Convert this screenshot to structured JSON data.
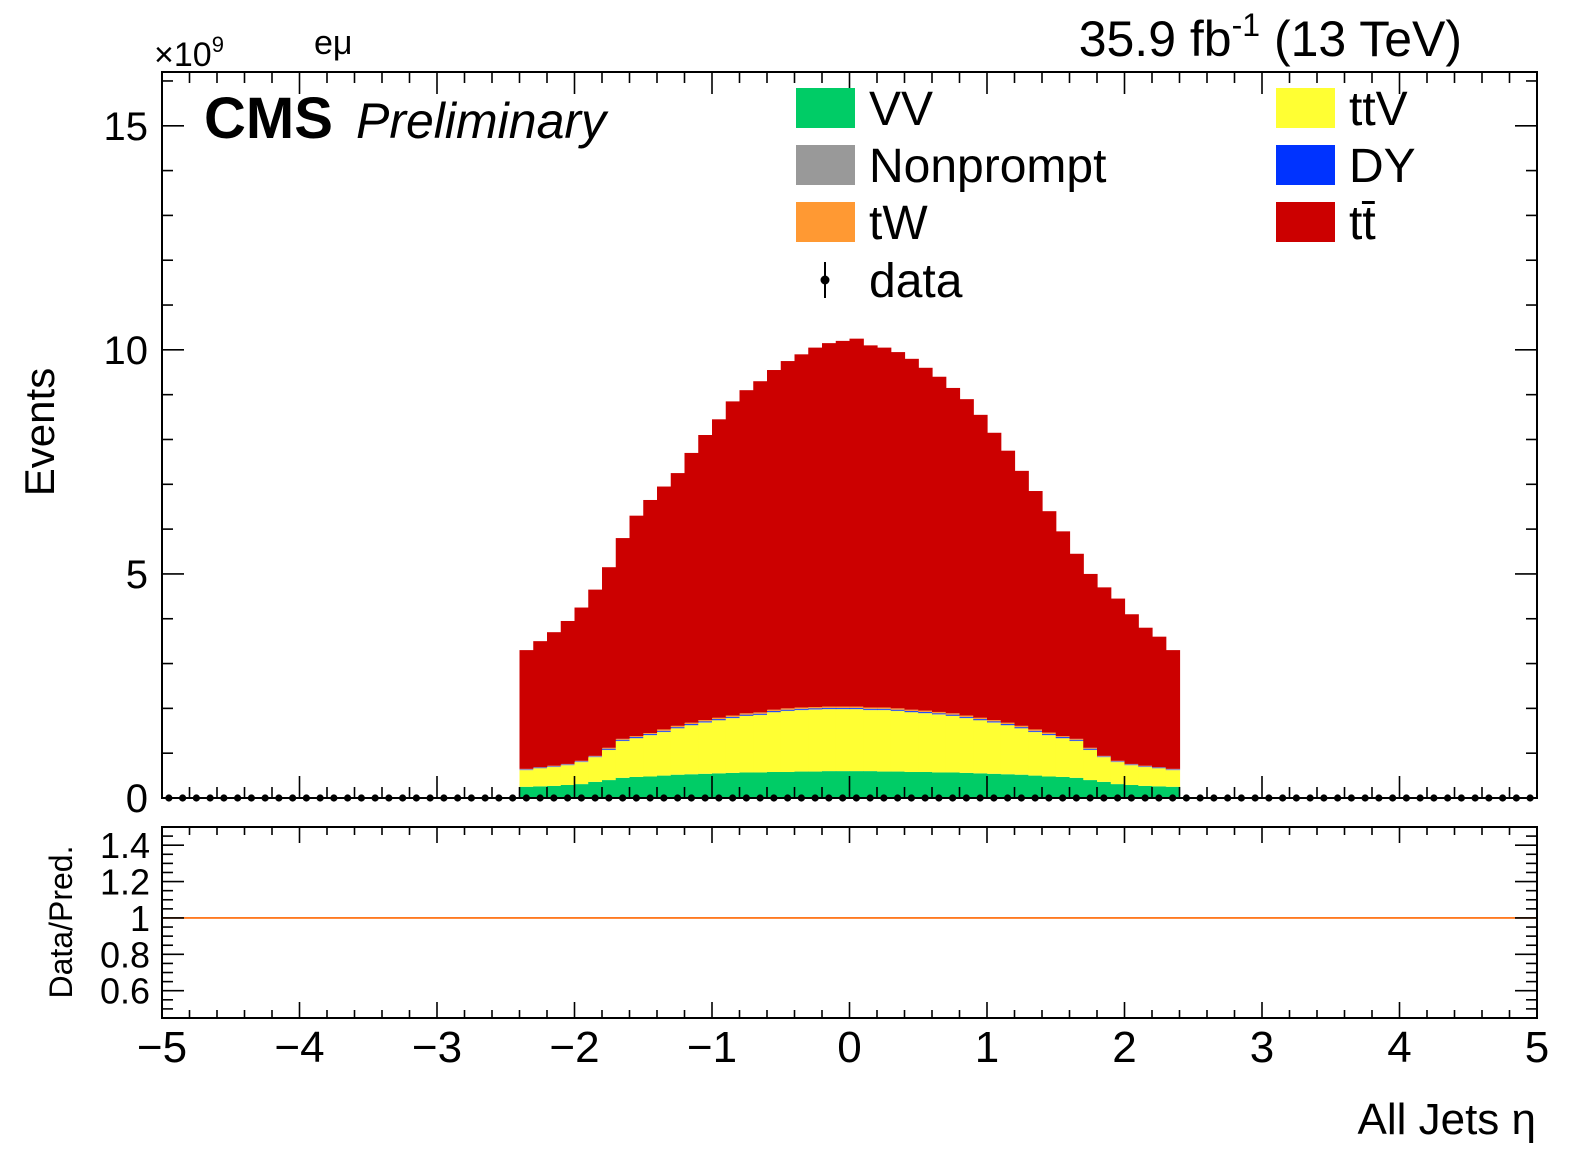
{
  "chart_data": [
    {
      "type": "bar",
      "stacked": true,
      "title": "",
      "top_right_label": "35.9 fb",
      "top_right_label_sup": "-1",
      "top_right_label_suffix": " (13 TeV)",
      "experiment_label": "CMS",
      "status_label": "Preliminary",
      "channel_label": "eμ",
      "y_multiplier_label": "×10",
      "y_multiplier_exp": "9",
      "ylabel": "Events",
      "xlabel": "All Jets η",
      "xlim": [
        -5,
        5
      ],
      "ylim": [
        0,
        16.2
      ],
      "y_unit_scale": 1000000000.0,
      "bin_width": 0.1,
      "x_bin_start": -2.4,
      "x_bin_end": 2.4,
      "x_ticks": [
        "−5",
        "−4",
        "−3",
        "−2",
        "−1",
        "0",
        "1",
        "2",
        "3",
        "4",
        "5"
      ],
      "x_tick_values": [
        -5,
        -4,
        -3,
        -2,
        -1,
        0,
        1,
        2,
        3,
        4,
        5
      ],
      "y_ticks": [
        "0",
        "5",
        "10",
        "15"
      ],
      "y_tick_values": [
        0,
        5,
        10,
        15
      ],
      "legend_placement": "top-right",
      "legend": [
        {
          "name": "VV",
          "color": "#00cc66",
          "kind": "box"
        },
        {
          "name": "ttV",
          "color": "#ffff33",
          "kind": "box"
        },
        {
          "name": "Nonprompt",
          "color": "#999999",
          "kind": "box"
        },
        {
          "name": "DY",
          "color": "#0033ff",
          "kind": "box"
        },
        {
          "name": "tW",
          "color": "#ff9933",
          "kind": "box"
        },
        {
          "name": "tt̄",
          "color": "#cc0000",
          "kind": "box"
        },
        {
          "name": "data",
          "color": "#000000",
          "kind": "marker"
        }
      ],
      "series_totals_top": [
        3.3,
        3.5,
        3.7,
        3.95,
        4.25,
        4.65,
        5.15,
        5.8,
        6.3,
        6.65,
        6.95,
        7.25,
        7.7,
        8.1,
        8.45,
        8.85,
        9.1,
        9.3,
        9.55,
        9.75,
        9.9,
        10.05,
        10.15,
        10.2,
        10.25,
        10.1,
        10.05,
        9.95,
        9.8,
        9.6,
        9.4,
        9.15,
        8.9,
        8.55,
        8.15,
        7.75,
        7.3,
        6.85,
        6.4,
        5.95,
        5.45,
        5.0,
        4.7,
        4.45,
        4.1,
        3.8,
        3.6,
        3.3
      ],
      "series": [
        {
          "name": "VV",
          "color": "#00cc66",
          "values": [
            0.25,
            0.26,
            0.27,
            0.29,
            0.31,
            0.36,
            0.4,
            0.45,
            0.47,
            0.48,
            0.5,
            0.52,
            0.53,
            0.54,
            0.55,
            0.56,
            0.57,
            0.57,
            0.58,
            0.58,
            0.59,
            0.59,
            0.6,
            0.6,
            0.6,
            0.6,
            0.59,
            0.59,
            0.58,
            0.58,
            0.57,
            0.57,
            0.56,
            0.55,
            0.54,
            0.53,
            0.52,
            0.5,
            0.48,
            0.47,
            0.45,
            0.4,
            0.36,
            0.31,
            0.29,
            0.27,
            0.26,
            0.25
          ]
        },
        {
          "name": "ttV",
          "color": "#ffff33",
          "values": [
            0.37,
            0.4,
            0.42,
            0.44,
            0.49,
            0.55,
            0.67,
            0.82,
            0.86,
            0.92,
            0.97,
            1.03,
            1.09,
            1.14,
            1.18,
            1.22,
            1.26,
            1.28,
            1.33,
            1.36,
            1.37,
            1.38,
            1.38,
            1.38,
            1.38,
            1.36,
            1.37,
            1.35,
            1.33,
            1.31,
            1.29,
            1.26,
            1.22,
            1.18,
            1.14,
            1.09,
            1.03,
            0.97,
            0.92,
            0.86,
            0.82,
            0.67,
            0.55,
            0.49,
            0.44,
            0.42,
            0.4,
            0.37
          ]
        },
        {
          "name": "Nonprompt",
          "color": "#999999",
          "values": [
            0.01,
            0.01,
            0.01,
            0.01,
            0.01,
            0.01,
            0.01,
            0.01,
            0.01,
            0.01,
            0.01,
            0.01,
            0.01,
            0.01,
            0.01,
            0.01,
            0.01,
            0.01,
            0.01,
            0.01,
            0.01,
            0.01,
            0.01,
            0.01,
            0.01,
            0.01,
            0.01,
            0.01,
            0.01,
            0.01,
            0.01,
            0.01,
            0.01,
            0.01,
            0.01,
            0.01,
            0.01,
            0.01,
            0.01,
            0.01,
            0.01,
            0.01,
            0.01,
            0.01,
            0.01,
            0.01,
            0.01,
            0.01
          ]
        },
        {
          "name": "DY",
          "color": "#0033ff",
          "values": [
            0.01,
            0.01,
            0.01,
            0.01,
            0.01,
            0.01,
            0.02,
            0.02,
            0.02,
            0.02,
            0.02,
            0.02,
            0.02,
            0.02,
            0.02,
            0.02,
            0.02,
            0.02,
            0.02,
            0.02,
            0.02,
            0.02,
            0.02,
            0.02,
            0.02,
            0.02,
            0.02,
            0.02,
            0.02,
            0.02,
            0.02,
            0.02,
            0.02,
            0.02,
            0.02,
            0.02,
            0.02,
            0.02,
            0.02,
            0.02,
            0.02,
            0.02,
            0.01,
            0.01,
            0.01,
            0.01,
            0.01,
            0.01
          ]
        },
        {
          "name": "tW",
          "color": "#ff9933",
          "values": [
            0.01,
            0.01,
            0.01,
            0.01,
            0.01,
            0.01,
            0.02,
            0.02,
            0.02,
            0.02,
            0.03,
            0.03,
            0.03,
            0.03,
            0.03,
            0.03,
            0.03,
            0.03,
            0.03,
            0.03,
            0.03,
            0.03,
            0.03,
            0.03,
            0.03,
            0.03,
            0.03,
            0.03,
            0.03,
            0.03,
            0.03,
            0.03,
            0.03,
            0.03,
            0.03,
            0.03,
            0.03,
            0.03,
            0.03,
            0.02,
            0.02,
            0.02,
            0.01,
            0.01,
            0.01,
            0.01,
            0.01,
            0.01
          ]
        }
      ],
      "top_series": {
        "name": "tt̄",
        "color": "#cc0000"
      },
      "data_points": {
        "name": "data",
        "x_start": -4.95,
        "x_step": 0.1,
        "count": 100,
        "value": 0
      }
    },
    {
      "type": "line",
      "title": "",
      "ylabel": "Data/Pred.",
      "xlabel": "All Jets η",
      "xlim": [
        -5,
        5
      ],
      "ylim": [
        0.45,
        1.5
      ],
      "y_ticks": [
        "0.6",
        "0.8",
        "1",
        "1.2",
        "1.4"
      ],
      "y_tick_values": [
        0.6,
        0.8,
        1.0,
        1.2,
        1.4
      ],
      "ratio_line": {
        "value": 1.0,
        "color": "#ff6600"
      }
    }
  ]
}
